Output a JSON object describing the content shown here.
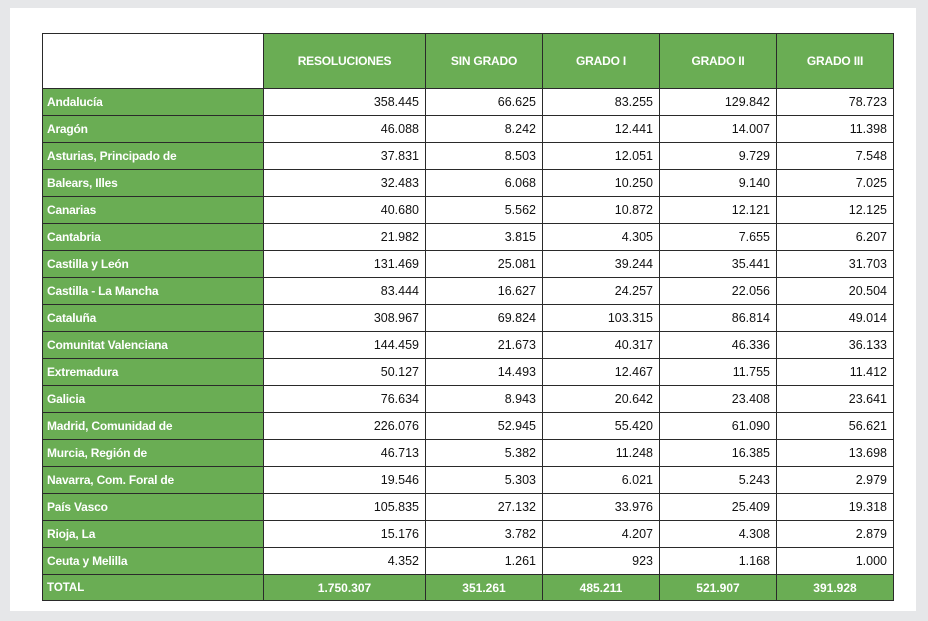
{
  "table": {
    "headers": [
      "",
      "RESOLUCIONES",
      "SIN GRADO",
      "GRADO I",
      "GRADO II",
      "GRADO III"
    ],
    "rows": [
      {
        "region": "Andalucía",
        "values": [
          "358.445",
          "66.625",
          "83.255",
          "129.842",
          "78.723"
        ]
      },
      {
        "region": "Aragón",
        "values": [
          "46.088",
          "8.242",
          "12.441",
          "14.007",
          "11.398"
        ]
      },
      {
        "region": "Asturias, Principado de",
        "values": [
          "37.831",
          "8.503",
          "12.051",
          "9.729",
          "7.548"
        ]
      },
      {
        "region": "Balears, Illes",
        "values": [
          "32.483",
          "6.068",
          "10.250",
          "9.140",
          "7.025"
        ]
      },
      {
        "region": "Canarias",
        "values": [
          "40.680",
          "5.562",
          "10.872",
          "12.121",
          "12.125"
        ]
      },
      {
        "region": "Cantabria",
        "values": [
          "21.982",
          "3.815",
          "4.305",
          "7.655",
          "6.207"
        ]
      },
      {
        "region": "Castilla y León",
        "values": [
          "131.469",
          "25.081",
          "39.244",
          "35.441",
          "31.703"
        ]
      },
      {
        "region": "Castilla - La Mancha",
        "values": [
          "83.444",
          "16.627",
          "24.257",
          "22.056",
          "20.504"
        ]
      },
      {
        "region": "Cataluña",
        "values": [
          "308.967",
          "69.824",
          "103.315",
          "86.814",
          "49.014"
        ]
      },
      {
        "region": "Comunitat Valenciana",
        "values": [
          "144.459",
          "21.673",
          "40.317",
          "46.336",
          "36.133"
        ]
      },
      {
        "region": "Extremadura",
        "values": [
          "50.127",
          "14.493",
          "12.467",
          "11.755",
          "11.412"
        ]
      },
      {
        "region": "Galicia",
        "values": [
          "76.634",
          "8.943",
          "20.642",
          "23.408",
          "23.641"
        ]
      },
      {
        "region": "Madrid, Comunidad de",
        "values": [
          "226.076",
          "52.945",
          "55.420",
          "61.090",
          "56.621"
        ]
      },
      {
        "region": "Murcia, Región de",
        "values": [
          "46.713",
          "5.382",
          "11.248",
          "16.385",
          "13.698"
        ]
      },
      {
        "region": "Navarra, Com. Foral de",
        "values": [
          "19.546",
          "5.303",
          "6.021",
          "5.243",
          "2.979"
        ]
      },
      {
        "region": "País Vasco",
        "values": [
          "105.835",
          "27.132",
          "33.976",
          "25.409",
          "19.318"
        ]
      },
      {
        "region": "Rioja, La",
        "values": [
          "15.176",
          "3.782",
          "4.207",
          "4.308",
          "2.879"
        ]
      },
      {
        "region": "Ceuta y Melilla",
        "values": [
          "4.352",
          "1.261",
          "923",
          "1.168",
          "1.000"
        ]
      }
    ],
    "total": {
      "label": "TOTAL",
      "values": [
        "1.750.307",
        "351.261",
        "485.211",
        "521.907",
        "391.928"
      ]
    }
  },
  "colors": {
    "header_green": "#6aad54",
    "background": "#e6e7e9"
  }
}
